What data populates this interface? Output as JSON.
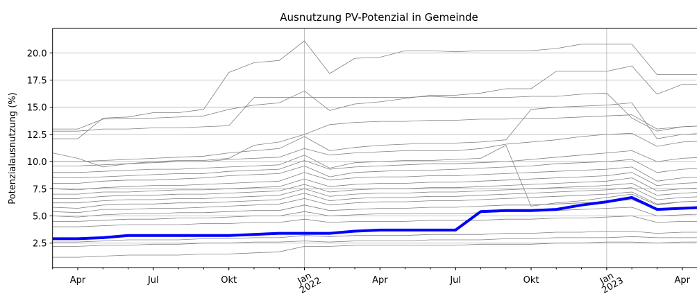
{
  "chart_data": {
    "type": "line",
    "title": "Ausnutzung PV-Potenzial in Gemeinde",
    "ylabel": "Potenzialausnutzung (%)",
    "x": [
      "2021-03",
      "2021-04",
      "2021-05",
      "2021-06",
      "2021-07",
      "2021-08",
      "2021-09",
      "2021-10",
      "2021-11",
      "2021-12",
      "2022-01",
      "2022-02",
      "2022-03",
      "2022-04",
      "2022-05",
      "2022-06",
      "2022-07",
      "2022-08",
      "2022-09",
      "2022-10",
      "2022-11",
      "2022-12",
      "2023-01",
      "2023-02",
      "2023-03",
      "2023-04",
      "2023-05"
    ],
    "xlim": [
      "2021-03",
      "2023-05"
    ],
    "xticks": [
      {
        "value": "2021-04",
        "label": "Apr"
      },
      {
        "value": "2021-07",
        "label": "Jul"
      },
      {
        "value": "2021-10",
        "label": "Okt"
      },
      {
        "value": "2022-01",
        "label": "Jan 2022"
      },
      {
        "value": "2022-04",
        "label": "Apr"
      },
      {
        "value": "2022-07",
        "label": "Jul"
      },
      {
        "value": "2022-10",
        "label": "Okt"
      },
      {
        "value": "2023-01",
        "label": "Jan 2023"
      },
      {
        "value": "2023-04",
        "label": "Apr"
      }
    ],
    "xgrid": [
      "2022-01",
      "2023-01"
    ],
    "ylim": [
      0.25,
      22.25
    ],
    "yticks": [
      2.5,
      {
        "value": 5.0,
        "label": "5.0"
      },
      7.5,
      {
        "value": 10.0,
        "label": "10.0"
      },
      12.5,
      {
        "value": 15.0,
        "label": "15.0"
      },
      17.5,
      {
        "value": 20.0,
        "label": "20.0"
      }
    ],
    "grid": true,
    "series": [
      {
        "color": "#808080",
        "linewidth": 0.8,
        "values": [
          12.1,
          12.1,
          14.0,
          14.1,
          14.5,
          14.5,
          14.8,
          18.2,
          19.1,
          19.3,
          21.1,
          18.1,
          19.5,
          19.6,
          20.2,
          20.2,
          20.1,
          20.2,
          20.2,
          20.2,
          20.4,
          20.8,
          20.8,
          20.8,
          18.0,
          18.0,
          18.0
        ]
      },
      {
        "color": "#808080",
        "linewidth": 0.8,
        "values": [
          13.0,
          13.0,
          13.9,
          14.0,
          14.0,
          14.1,
          14.2,
          14.8,
          15.2,
          15.4,
          16.5,
          14.7,
          15.3,
          15.5,
          15.8,
          16.1,
          16.1,
          16.3,
          16.7,
          16.7,
          18.3,
          18.3,
          18.3,
          18.8,
          16.2,
          17.1,
          17.1
        ]
      },
      {
        "color": "#808080",
        "linewidth": 0.8,
        "values": [
          12.8,
          12.8,
          13.0,
          13.0,
          13.1,
          13.1,
          13.2,
          13.3,
          15.9,
          15.9,
          15.9,
          15.9,
          15.9,
          15.9,
          15.9,
          16.0,
          15.9,
          15.9,
          15.9,
          16.0,
          16.0,
          16.2,
          16.3,
          14.0,
          12.8,
          13.2,
          13.3
        ]
      },
      {
        "color": "#808080",
        "linewidth": 0.8,
        "values": [
          10.8,
          10.3,
          9.5,
          9.8,
          10.0,
          10.1,
          10.1,
          10.3,
          11.5,
          11.8,
          12.5,
          13.4,
          13.6,
          13.7,
          13.7,
          13.8,
          13.8,
          13.9,
          13.9,
          14.0,
          14.0,
          14.1,
          14.2,
          14.3,
          13.0,
          13.2,
          13.3
        ]
      },
      {
        "color": "#808080",
        "linewidth": 0.8,
        "values": [
          10.0,
          10.0,
          10.1,
          10.2,
          10.3,
          10.4,
          10.5,
          10.8,
          11.0,
          11.2,
          12.3,
          11.0,
          11.3,
          11.5,
          11.6,
          11.7,
          11.7,
          11.8,
          12.0,
          14.8,
          15.0,
          15.1,
          15.2,
          15.4,
          12.1,
          12.5,
          12.6
        ]
      },
      {
        "color": "#808080",
        "linewidth": 0.8,
        "values": [
          9.6,
          9.6,
          9.7,
          9.8,
          9.9,
          10.0,
          10.0,
          10.2,
          10.3,
          10.4,
          11.2,
          10.6,
          10.8,
          10.9,
          11.0,
          11.0,
          11.0,
          11.2,
          11.6,
          11.8,
          12.0,
          12.3,
          12.5,
          12.6,
          11.4,
          11.8,
          11.9
        ]
      },
      {
        "color": "#808080",
        "linewidth": 0.8,
        "values": [
          9.0,
          9.0,
          9.1,
          9.2,
          9.3,
          9.3,
          9.4,
          9.5,
          9.6,
          9.7,
          10.6,
          9.4,
          9.9,
          10.0,
          10.1,
          10.1,
          10.2,
          10.3,
          11.5,
          5.9,
          6.2,
          6.4,
          6.7,
          7.0,
          6.0,
          6.3,
          6.4
        ]
      },
      {
        "color": "#808080",
        "linewidth": 0.8,
        "values": [
          8.5,
          8.5,
          8.6,
          8.7,
          8.8,
          8.9,
          8.9,
          9.1,
          9.2,
          9.3,
          10.1,
          9.3,
          9.5,
          9.6,
          9.7,
          9.8,
          9.8,
          9.9,
          10.0,
          10.2,
          10.4,
          10.6,
          10.8,
          11.0,
          10.0,
          10.3,
          10.4
        ]
      },
      {
        "color": "#808080",
        "linewidth": 0.8,
        "values": [
          8.0,
          8.0,
          8.2,
          8.3,
          8.3,
          8.4,
          8.5,
          8.7,
          8.8,
          8.9,
          9.6,
          8.6,
          9.0,
          9.1,
          9.2,
          9.2,
          9.3,
          9.4,
          9.5,
          9.6,
          9.8,
          9.9,
          10.0,
          10.2,
          9.0,
          9.3,
          9.4
        ]
      },
      {
        "color": "#808080",
        "linewidth": 0.8,
        "values": [
          7.5,
          7.4,
          7.6,
          7.7,
          7.8,
          7.8,
          7.9,
          8.0,
          8.1,
          8.2,
          9.0,
          8.3,
          8.5,
          8.6,
          8.6,
          8.7,
          8.7,
          8.8,
          8.9,
          9.0,
          9.1,
          9.2,
          9.3,
          9.5,
          8.2,
          8.5,
          8.6
        ]
      },
      {
        "color": "#808080",
        "linewidth": 0.8,
        "values": [
          7.0,
          7.0,
          7.2,
          7.2,
          7.3,
          7.4,
          7.4,
          7.5,
          7.6,
          7.7,
          8.4,
          7.7,
          7.9,
          8.0,
          8.0,
          8.1,
          8.1,
          8.2,
          8.3,
          8.4,
          8.5,
          8.6,
          8.7,
          9.0,
          7.8,
          8.0,
          8.1
        ]
      },
      {
        "color": "#808080",
        "linewidth": 0.8,
        "values": [
          6.6,
          6.6,
          6.8,
          6.9,
          6.9,
          7.0,
          7.0,
          7.1,
          7.2,
          7.3,
          7.9,
          7.2,
          7.4,
          7.5,
          7.5,
          7.6,
          7.6,
          7.7,
          7.8,
          7.9,
          8.0,
          8.1,
          8.2,
          8.5,
          7.3,
          7.5,
          7.6
        ]
      },
      {
        "color": "#808080",
        "linewidth": 0.8,
        "values": [
          6.2,
          6.2,
          6.4,
          6.5,
          6.5,
          6.6,
          6.6,
          6.7,
          6.8,
          6.9,
          7.5,
          6.8,
          7.0,
          7.1,
          7.1,
          7.2,
          7.2,
          7.3,
          7.4,
          7.5,
          7.6,
          7.7,
          7.8,
          8.0,
          6.9,
          7.1,
          7.2
        ]
      },
      {
        "color": "#808080",
        "linewidth": 0.8,
        "values": [
          5.8,
          5.7,
          6.0,
          6.1,
          6.1,
          6.2,
          6.2,
          6.3,
          6.4,
          6.5,
          7.1,
          6.4,
          6.6,
          6.7,
          6.7,
          6.8,
          6.8,
          6.9,
          7.0,
          7.1,
          7.2,
          7.3,
          7.4,
          7.6,
          6.5,
          6.7,
          6.8
        ]
      },
      {
        "color": "#808080",
        "linewidth": 0.8,
        "values": [
          5.4,
          5.3,
          5.6,
          5.6,
          5.7,
          5.7,
          5.8,
          5.9,
          6.0,
          6.1,
          6.6,
          6.0,
          6.2,
          6.3,
          6.3,
          6.4,
          6.4,
          6.5,
          6.6,
          6.7,
          6.8,
          6.9,
          7.0,
          7.2,
          6.1,
          6.3,
          6.4
        ]
      },
      {
        "color": "#808080",
        "linewidth": 0.8,
        "values": [
          5.0,
          4.9,
          5.1,
          5.2,
          5.2,
          5.3,
          5.3,
          5.4,
          5.5,
          5.5,
          6.0,
          5.5,
          5.6,
          5.7,
          5.7,
          5.8,
          5.8,
          5.9,
          6.0,
          6.0,
          6.1,
          6.2,
          6.3,
          6.5,
          5.6,
          5.8,
          5.9
        ]
      },
      {
        "color": "#808080",
        "linewidth": 0.8,
        "values": [
          4.5,
          4.5,
          4.6,
          4.7,
          4.7,
          4.8,
          4.8,
          4.9,
          5.0,
          5.0,
          5.4,
          5.0,
          5.1,
          5.2,
          5.2,
          5.2,
          5.2,
          5.3,
          5.4,
          5.4,
          5.5,
          5.6,
          5.7,
          5.8,
          5.0,
          5.1,
          5.2
        ]
      },
      {
        "color": "#808080",
        "linewidth": 0.8,
        "values": [
          4.0,
          4.0,
          4.1,
          4.2,
          4.2,
          4.2,
          4.3,
          4.3,
          4.4,
          4.4,
          4.7,
          4.4,
          4.5,
          4.5,
          4.5,
          4.6,
          4.6,
          4.6,
          4.7,
          4.7,
          4.8,
          4.8,
          4.9,
          5.0,
          4.4,
          4.5,
          4.5
        ]
      },
      {
        "color": "#808080",
        "linewidth": 0.8,
        "values": [
          2.6,
          2.6,
          2.7,
          2.8,
          2.8,
          2.8,
          2.9,
          2.9,
          3.0,
          3.0,
          3.2,
          3.1,
          3.2,
          3.2,
          3.2,
          3.3,
          3.3,
          3.3,
          3.4,
          3.4,
          3.5,
          3.5,
          3.6,
          3.6,
          3.4,
          3.5,
          3.5
        ]
      },
      {
        "color": "#808080",
        "linewidth": 0.8,
        "values": [
          2.2,
          2.2,
          2.3,
          2.3,
          2.4,
          2.4,
          2.5,
          2.5,
          2.6,
          2.6,
          2.7,
          2.6,
          2.7,
          2.7,
          2.7,
          2.8,
          2.8,
          2.8,
          2.9,
          2.9,
          3.0,
          3.0,
          3.0,
          3.1,
          3.0,
          3.0,
          3.0
        ]
      },
      {
        "color": "#808080",
        "linewidth": 0.8,
        "values": [
          1.2,
          1.2,
          1.3,
          1.4,
          1.4,
          1.4,
          1.5,
          1.5,
          1.6,
          1.7,
          2.2,
          2.2,
          2.3,
          2.3,
          2.3,
          2.3,
          2.3,
          2.4,
          2.4,
          2.4,
          2.5,
          2.5,
          2.6,
          2.6,
          2.5,
          2.6,
          2.6
        ]
      },
      {
        "color": "#0000ff",
        "linewidth": 4,
        "values": [
          2.9,
          2.9,
          3.0,
          3.2,
          3.2,
          3.2,
          3.2,
          3.2,
          3.3,
          3.4,
          3.4,
          3.4,
          3.6,
          3.7,
          3.7,
          3.7,
          3.7,
          5.4,
          5.5,
          5.5,
          5.6,
          6.0,
          6.3,
          6.7,
          5.6,
          5.7,
          5.8
        ]
      }
    ]
  }
}
